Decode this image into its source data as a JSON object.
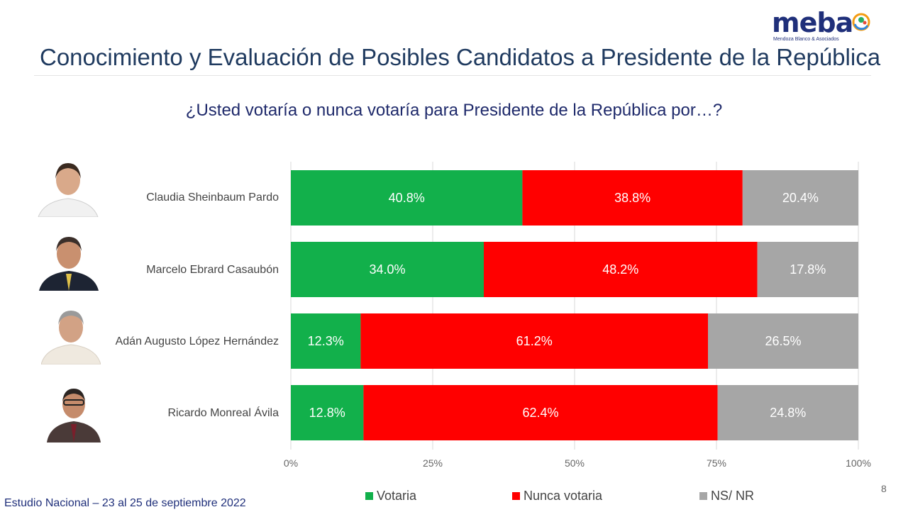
{
  "logo": {
    "word": "meba",
    "tagline": "Mendoza Blanco & Asociados",
    "icon": "meba-logo-mark"
  },
  "header": {
    "title": "Conocimiento y Evaluación de Posibles Candidatos a Presidente de la República",
    "subtitle": "¿Usted votaría o nunca votaría para Presidente de la República por…?"
  },
  "candidates": [
    {
      "name": "Claudia Sheinbaum Pardo",
      "photo_icon": "candidate-photo"
    },
    {
      "name": "Marcelo Ebrard Casaubón",
      "photo_icon": "candidate-photo"
    },
    {
      "name": "Adán Augusto López Hernández",
      "photo_icon": "candidate-photo"
    },
    {
      "name": "Ricardo Monreal Ávila",
      "photo_icon": "candidate-photo"
    }
  ],
  "chart_data": {
    "type": "bar",
    "orientation": "horizontal",
    "stacked": true,
    "percent": true,
    "categories": [
      "Claudia Sheinbaum Pardo",
      "Marcelo Ebrard Casaubón",
      "Adán Augusto López Hernández",
      "Ricardo Monreal Ávila"
    ],
    "series": [
      {
        "name": "Votaria",
        "color": "#12b04b",
        "values": [
          40.8,
          34.0,
          12.3,
          12.8
        ]
      },
      {
        "name": "Nunca votaria",
        "color": "#ff0000",
        "values": [
          38.8,
          48.2,
          61.2,
          62.4
        ]
      },
      {
        "name": "NS/ NR",
        "color": "#a6a6a6",
        "values": [
          20.4,
          17.8,
          26.5,
          24.8
        ]
      }
    ],
    "data_labels": [
      [
        "40.8%",
        "38.8%",
        "20.4%"
      ],
      [
        "34.0%",
        "48.2%",
        "17.8%"
      ],
      [
        "12.3%",
        "61.2%",
        "26.5%"
      ],
      [
        "12.8%",
        "62.4%",
        "24.8%"
      ]
    ],
    "xlim": [
      0,
      100
    ],
    "x_ticks": [
      "0%",
      "25%",
      "50%",
      "75%",
      "100%"
    ],
    "grid": true,
    "legend_position": "bottom",
    "data_label_color": "#ffffff",
    "grid_color": "#d9d9d9",
    "tick_label_color": "#666666"
  },
  "footer": {
    "study": "Estudio Nacional – 23 al 25 de septiembre 2022",
    "page": "8"
  }
}
